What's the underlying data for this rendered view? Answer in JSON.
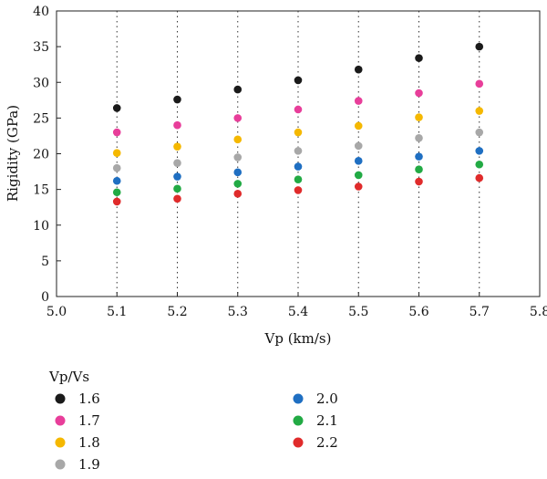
{
  "chart_data": {
    "type": "scatter",
    "xlabel": "Vp (km/s)",
    "ylabel": "Rigidity (GPa)",
    "xlim": [
      5.0,
      5.8
    ],
    "ylim": [
      0,
      40
    ],
    "xticks": [
      "5.0",
      "5.1",
      "5.2",
      "5.3",
      "5.4",
      "5.5",
      "5.6",
      "5.7",
      "5.8"
    ],
    "yticks": [
      "0",
      "5",
      "10",
      "15",
      "20",
      "25",
      "30",
      "35",
      "40"
    ],
    "grid": "dotted",
    "legend_title": "Vp/Vs",
    "legend_placement": "bottom",
    "x": [
      5.1,
      5.2,
      5.3,
      5.4,
      5.5,
      5.6,
      5.7
    ],
    "series": [
      {
        "name": "1.6",
        "color": "#1a1a1a",
        "values": [
          26.4,
          27.6,
          29.0,
          30.3,
          31.8,
          33.4,
          35.0
        ]
      },
      {
        "name": "1.7",
        "color": "#e83e9a",
        "values": [
          23.0,
          24.0,
          25.0,
          26.2,
          27.4,
          28.5,
          29.8
        ]
      },
      {
        "name": "1.8",
        "color": "#f5b800",
        "values": [
          20.1,
          21.0,
          22.0,
          23.0,
          23.9,
          25.1,
          26.0
        ]
      },
      {
        "name": "1.9",
        "color": "#a8a8a8",
        "values": [
          18.0,
          18.7,
          19.5,
          20.4,
          21.1,
          22.2,
          23.0
        ]
      },
      {
        "name": "2.0",
        "color": "#1f6fc2",
        "values": [
          16.2,
          16.8,
          17.4,
          18.2,
          19.0,
          19.6,
          20.4
        ]
      },
      {
        "name": "2.1",
        "color": "#22aa44",
        "values": [
          14.6,
          15.1,
          15.8,
          16.4,
          17.0,
          17.8,
          18.5
        ]
      },
      {
        "name": "2.2",
        "color": "#e02b2b",
        "values": [
          13.3,
          13.7,
          14.4,
          14.9,
          15.4,
          16.1,
          16.6
        ]
      }
    ]
  }
}
